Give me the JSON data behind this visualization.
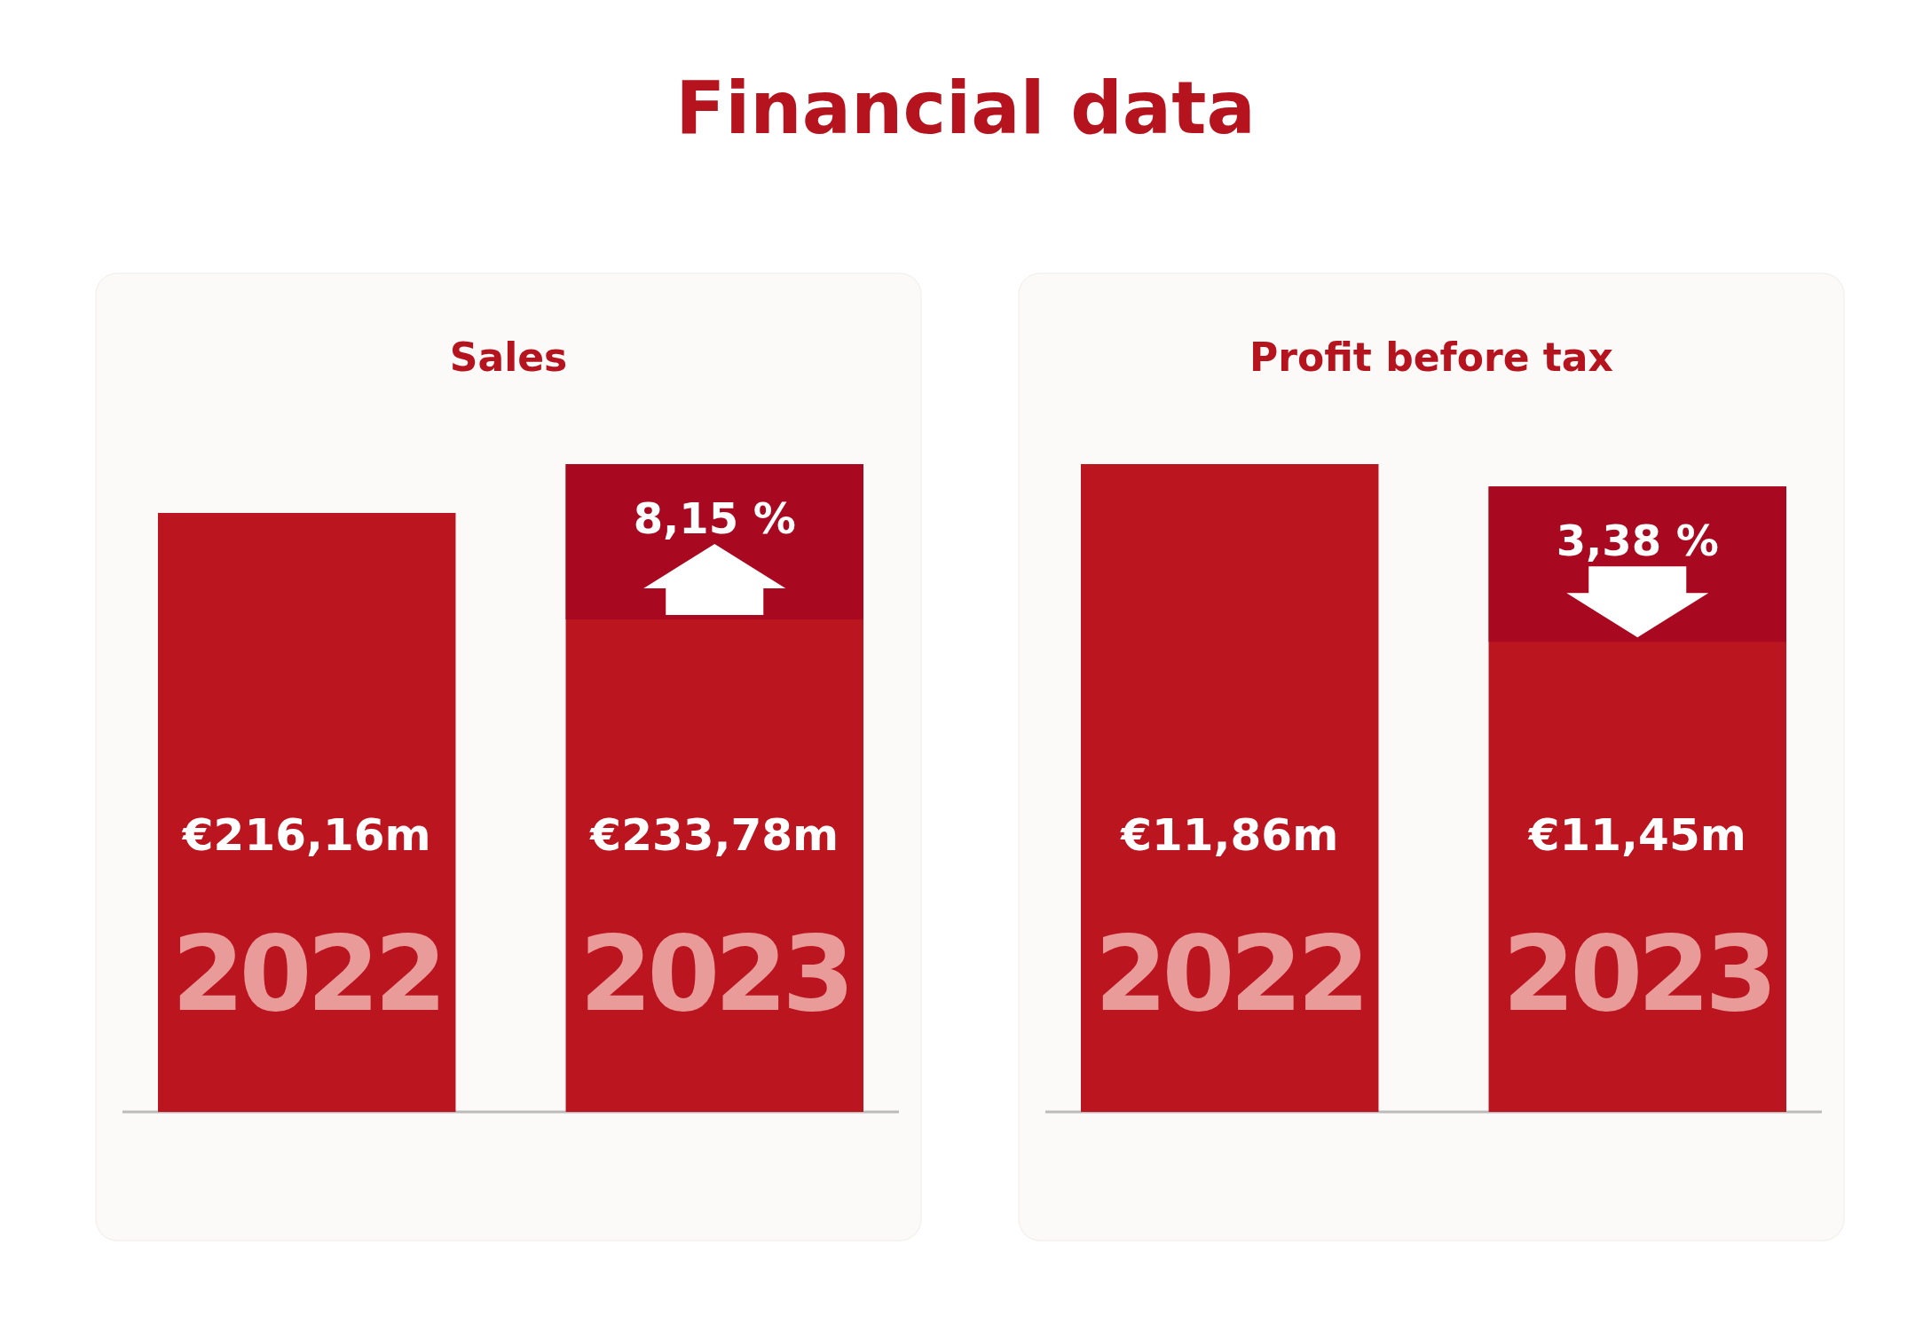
{
  "chart_data": [
    {
      "type": "bar",
      "title": "Sales",
      "categories": [
        "2022",
        "2023"
      ],
      "values": [
        216.16,
        233.78
      ],
      "color": "#bb1520",
      "value_labels": [
        "€216,16m",
        "€233,78m"
      ],
      "annotations": [
        "Financial data",
        {
          "text": "8,15 %",
          "x": "2023",
          "y": 233.78
        }
      ]
    },
    {
      "type": "bar",
      "title": "Profit before tax",
      "categories": [
        "2022",
        "2023"
      ],
      "values": [
        11.86,
        11.45
      ],
      "color": "#bb1520",
      "value_labels": [
        "€11,86m",
        "€11,45m"
      ],
      "annotations": [
        {
          "text": "3,38 %",
          "x": "2023",
          "y": 11.45
        }
      ]
    }
  ]
}
